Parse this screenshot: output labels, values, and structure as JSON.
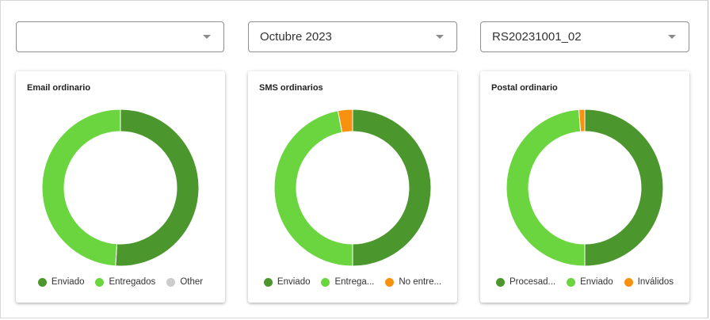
{
  "filters": [
    {
      "value": ""
    },
    {
      "value": "Octubre 2023"
    },
    {
      "value": "RS20231001_02"
    }
  ],
  "colors": {
    "dark_green": "#4b962d",
    "light_green": "#6ad53f",
    "gray": "#cccccc",
    "orange": "#f7910f"
  },
  "cards": [
    {
      "title": "Email ordinario",
      "legend": [
        {
          "label": "Enviado",
          "color": "#4b962d"
        },
        {
          "label": "Entregados",
          "color": "#6ad53f"
        },
        {
          "label": "Other",
          "color": "#cccccc"
        }
      ]
    },
    {
      "title": "SMS ordinarios",
      "legend": [
        {
          "label": "Enviado",
          "color": "#4b962d"
        },
        {
          "label": "Entrega...",
          "color": "#6ad53f"
        },
        {
          "label": "No entre...",
          "color": "#f7910f"
        }
      ]
    },
    {
      "title": "Postal ordinario",
      "legend": [
        {
          "label": "Procesad...",
          "color": "#4b962d"
        },
        {
          "label": "Enviado",
          "color": "#6ad53f"
        },
        {
          "label": "Inválidos",
          "color": "#f7910f"
        }
      ]
    }
  ],
  "chart_data": [
    {
      "type": "pie",
      "title": "Email ordinario",
      "labels": [
        "Enviado",
        "Entregados",
        "Other"
      ],
      "values": [
        51,
        49,
        0
      ]
    },
    {
      "type": "pie",
      "title": "SMS ordinarios",
      "labels": [
        "Enviado",
        "Entrega...",
        "No entre..."
      ],
      "values": [
        50,
        47,
        3
      ]
    },
    {
      "type": "pie",
      "title": "Postal ordinario",
      "labels": [
        "Procesad...",
        "Enviado",
        "Inválidos"
      ],
      "values": [
        50,
        48.8,
        1.2
      ]
    }
  ]
}
